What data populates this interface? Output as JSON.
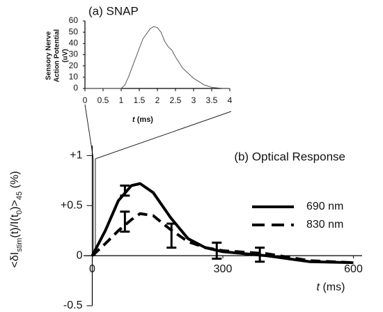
{
  "chart_data": [
    {
      "type": "line",
      "title": "(a) SNAP",
      "y_label": [
        "Sensory Nerve",
        "Action Potential",
        "(uV)"
      ],
      "x_label": [
        "t",
        " (ms)"
      ],
      "x": [
        0,
        0.5,
        1,
        1.1,
        1.2,
        1.4,
        1.6,
        1.8,
        1.9,
        2.0,
        2.1,
        2.2,
        2.3,
        2.4,
        2.5,
        2.7,
        3.0,
        3.3,
        3.5,
        3.8,
        4
      ],
      "values": [
        0,
        0,
        0,
        3,
        10,
        27,
        44,
        53,
        55,
        54,
        50,
        42,
        37,
        34,
        28,
        18,
        9,
        3,
        1,
        0,
        0
      ],
      "color": "#555555",
      "xlim": [
        0,
        4
      ],
      "ylim": [
        0,
        60
      ],
      "xticks": [
        0,
        0.5,
        1,
        1.5,
        2,
        2.5,
        3,
        3.5,
        4
      ],
      "yticks": [
        0,
        10,
        20,
        30,
        40,
        50,
        60
      ]
    },
    {
      "type": "line",
      "title": "(b) Optical Response",
      "y_label": [
        "<δI",
        "stim",
        "(t)/I(t",
        "0",
        ")>",
        "45",
        " (%)"
      ],
      "x_label": [
        "t",
        " (ms)"
      ],
      "x": [
        0,
        30,
        60,
        90,
        110,
        140,
        180,
        220,
        260,
        300,
        400,
        500,
        600
      ],
      "series": [
        {
          "name": "690 nm",
          "color": "#000000",
          "dash": false,
          "values": [
            0,
            0.25,
            0.55,
            0.7,
            0.72,
            0.63,
            0.38,
            0.17,
            0.08,
            0.04,
            0.0,
            -0.06,
            -0.07
          ]
        },
        {
          "name": "830 nm",
          "color": "#000000",
          "dash": true,
          "values": [
            0,
            0.12,
            0.25,
            0.36,
            0.42,
            0.4,
            0.26,
            0.14,
            0.08,
            0.05,
            0.02,
            -0.05,
            -0.07
          ]
        }
      ],
      "error_bars": {
        "x": [
          75,
          75,
          182,
          286,
          385
        ],
        "values": [
          0.65,
          0.34,
          0.2,
          0.05,
          0.01
        ],
        "errors": [
          0.05,
          0.1,
          0.12,
          0.08,
          0.07
        ]
      },
      "xlim": [
        -20,
        620
      ],
      "ylim": [
        -0.5,
        1.1
      ],
      "xticks": [
        0,
        300,
        600
      ],
      "yticks": [
        {
          "value": -0.5,
          "label": "-0.5"
        },
        0,
        {
          "value": 0.5,
          "label": "+0.5"
        },
        {
          "value": 1,
          "label": "+1"
        }
      ]
    }
  ]
}
